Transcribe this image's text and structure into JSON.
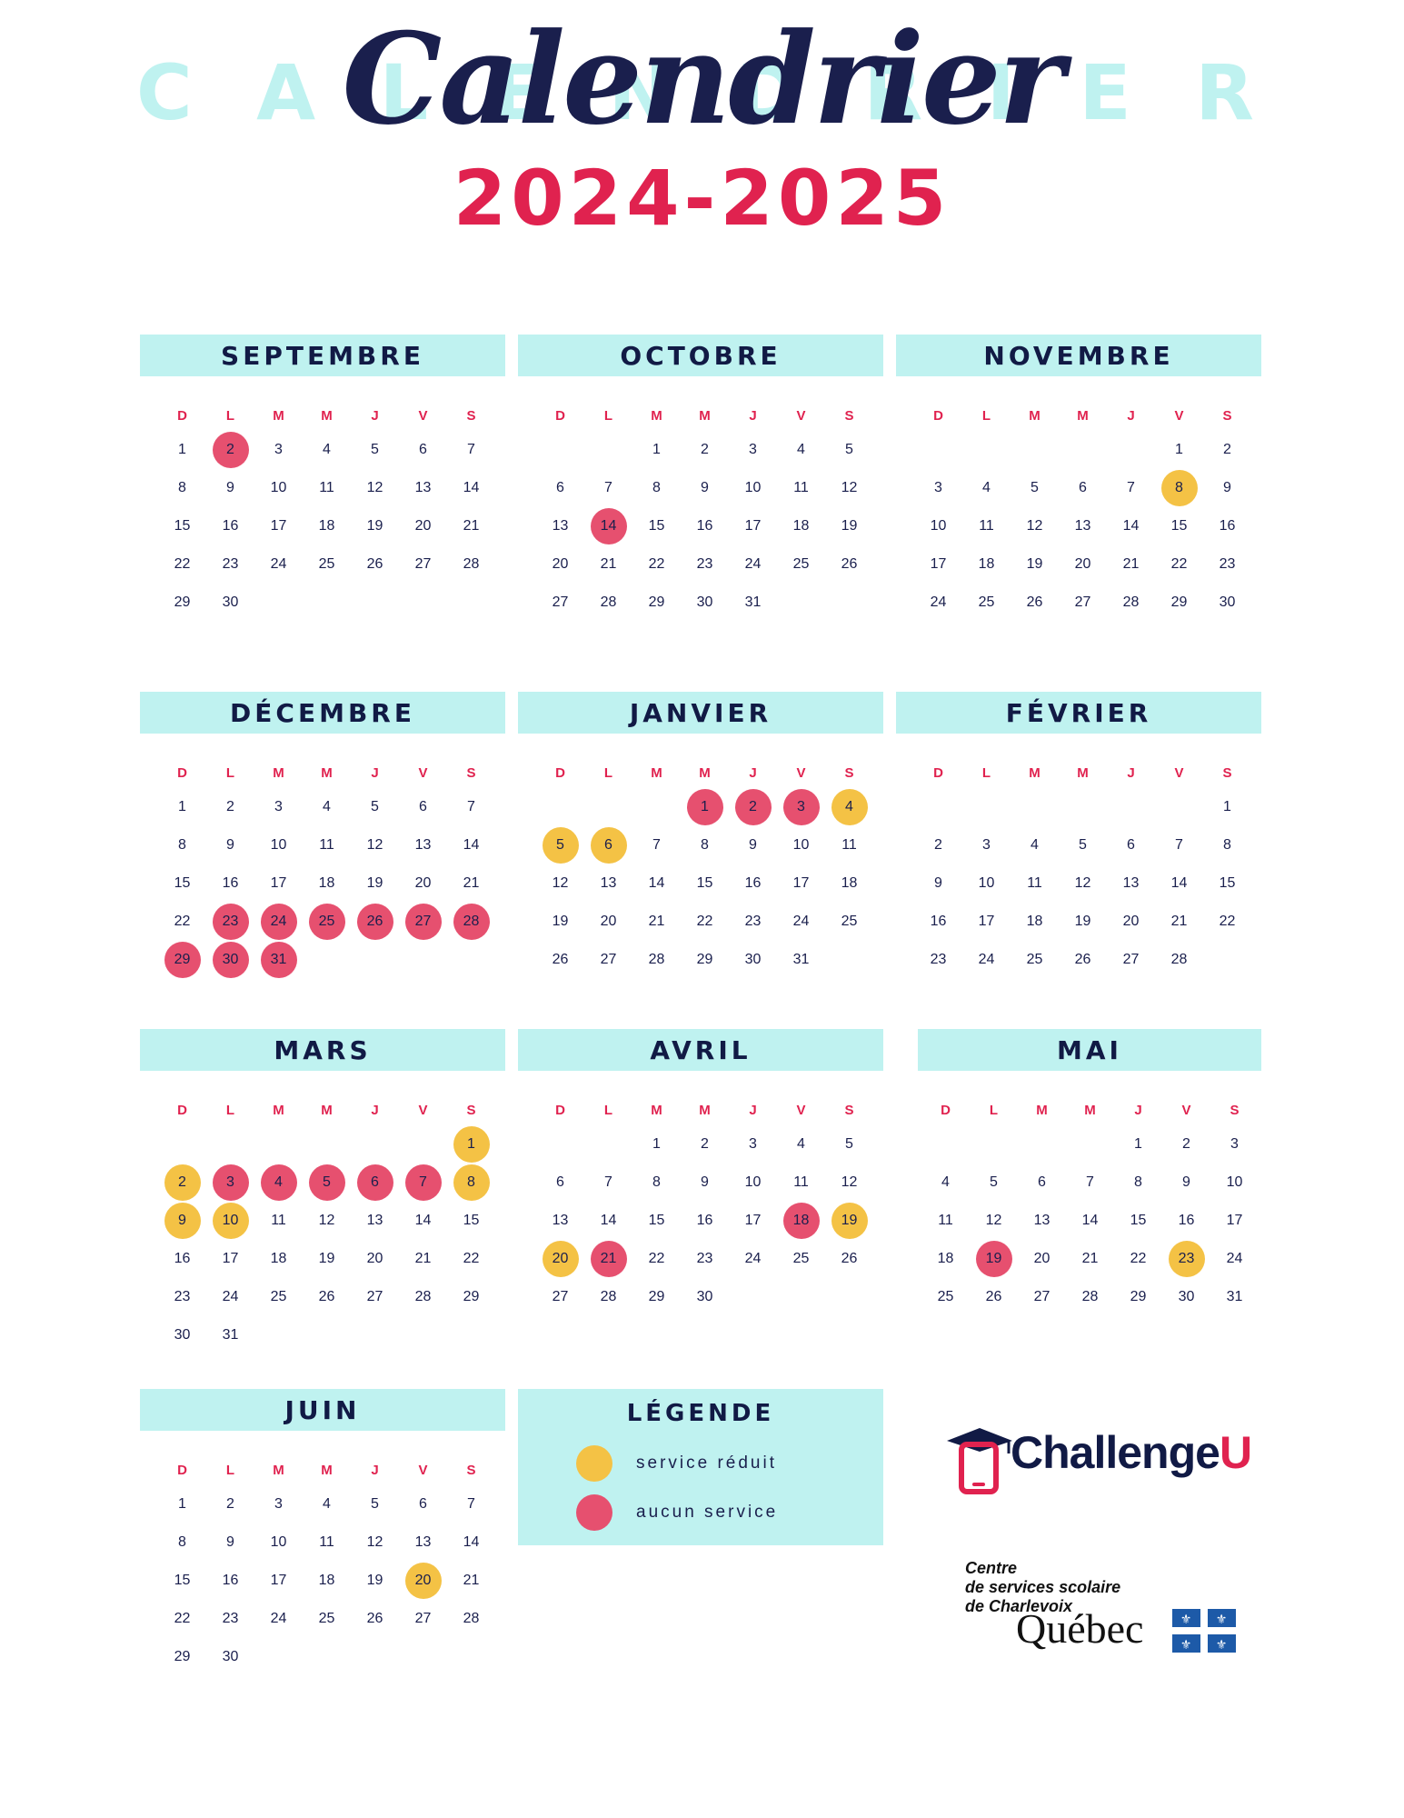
{
  "header": {
    "background_word": "CALENDRIER",
    "script_title": "Calendrier",
    "year_title": "2024-2025"
  },
  "weekday_labels": [
    "D",
    "L",
    "M",
    "M",
    "J",
    "V",
    "S"
  ],
  "colors": {
    "no_service": "#e6506f",
    "reduced_service": "#f4c245",
    "header_band": "#bff2f0",
    "title_red": "#e0224f",
    "navy": "#111a45"
  },
  "months": [
    {
      "name": "SEPTEMBRE",
      "start_weekday": 0,
      "days": 30,
      "no_service": [
        2
      ],
      "reduced": []
    },
    {
      "name": "OCTOBRE",
      "start_weekday": 2,
      "days": 31,
      "no_service": [
        14
      ],
      "reduced": []
    },
    {
      "name": "NOVEMBRE",
      "start_weekday": 5,
      "days": 30,
      "no_service": [],
      "reduced": [
        8
      ]
    },
    {
      "name": "DÉCEMBRE",
      "start_weekday": 0,
      "days": 31,
      "no_service": [
        23,
        24,
        25,
        26,
        27,
        28,
        29,
        30,
        31
      ],
      "reduced": []
    },
    {
      "name": "JANVIER",
      "start_weekday": 3,
      "days": 31,
      "no_service": [
        1,
        2,
        3
      ],
      "reduced": [
        4,
        5,
        6
      ]
    },
    {
      "name": "FÉVRIER",
      "start_weekday": 6,
      "days": 28,
      "no_service": [],
      "reduced": []
    },
    {
      "name": "MARS",
      "start_weekday": 6,
      "days": 31,
      "no_service": [
        3,
        4,
        5,
        6,
        7
      ],
      "reduced": [
        1,
        2,
        8,
        9,
        10
      ]
    },
    {
      "name": "AVRIL",
      "start_weekday": 2,
      "days": 30,
      "no_service": [
        18,
        21
      ],
      "reduced": [
        19,
        20
      ]
    },
    {
      "name": "MAI",
      "start_weekday": 4,
      "days": 31,
      "no_service": [
        19
      ],
      "reduced": [
        23
      ]
    },
    {
      "name": "JUIN",
      "start_weekday": 0,
      "days": 30,
      "no_service": [],
      "reduced": [
        20
      ]
    }
  ],
  "legend": {
    "title": "LÉGENDE",
    "reduced_label": "service réduit",
    "none_label": "aucun service"
  },
  "logos": {
    "challengeu_main": "Challenge",
    "challengeu_accent": "U",
    "csc_line1": "Centre",
    "csc_line2": "de services scolaire",
    "csc_line3": "de Charlevoix",
    "quebec": "Québec",
    "mortarboard_icon": "graduation-cap-phone-icon",
    "flag_icon": "quebec-fleurdelise-icon"
  }
}
